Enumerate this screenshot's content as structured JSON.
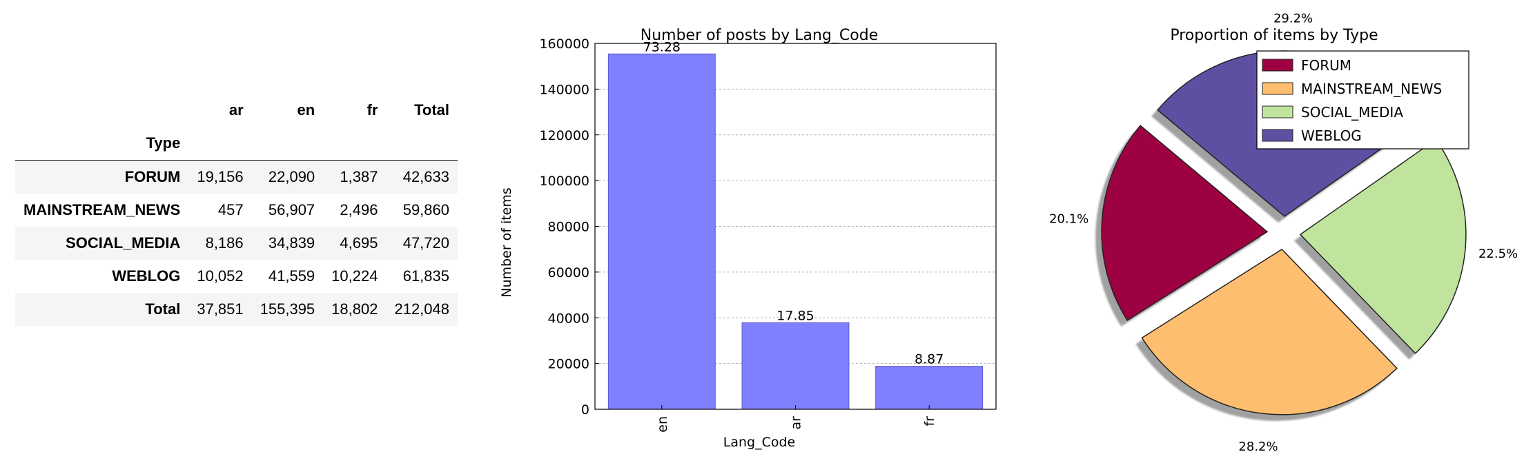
{
  "table": {
    "index_name": "Type",
    "columns": [
      "ar",
      "en",
      "fr",
      "Total"
    ],
    "rows": [
      {
        "label": "FORUM",
        "values": [
          "19,156",
          "22,090",
          "1,387",
          "42,633"
        ]
      },
      {
        "label": "MAINSTREAM_NEWS",
        "values": [
          "457",
          "56,907",
          "2,496",
          "59,860"
        ]
      },
      {
        "label": "SOCIAL_MEDIA",
        "values": [
          "8,186",
          "34,839",
          "4,695",
          "47,720"
        ]
      },
      {
        "label": "WEBLOG",
        "values": [
          "10,052",
          "41,559",
          "10,224",
          "61,835"
        ]
      },
      {
        "label": "Total",
        "values": [
          "37,851",
          "155,395",
          "18,802",
          "212,048"
        ]
      }
    ]
  },
  "chart_data": [
    {
      "type": "bar",
      "title": "Number of posts by Lang_Code",
      "xlabel": "Lang_Code",
      "ylabel": "Number of items",
      "categories": [
        "en",
        "ar",
        "fr"
      ],
      "values": [
        155395,
        37851,
        18802
      ],
      "data_labels": [
        "73.28",
        "17.85",
        "8.87"
      ],
      "ylim": [
        0,
        160000
      ],
      "yticks": [
        0,
        20000,
        40000,
        60000,
        80000,
        100000,
        120000,
        140000,
        160000
      ],
      "grid": "horizontal dashed",
      "bar_color": "#8080ff"
    },
    {
      "type": "pie",
      "title": "Proportion of items by Type",
      "labels": [
        "FORUM",
        "MAINSTREAM_NEWS",
        "SOCIAL_MEDIA",
        "WEBLOG"
      ],
      "values": [
        42633,
        59860,
        47720,
        61835
      ],
      "pct_labels": [
        "20.1%",
        "28.2%",
        "22.5%",
        "29.2%"
      ],
      "colors": [
        "#9e0142",
        "#fdbf6f",
        "#c0e49e",
        "#5e4fa2"
      ],
      "exploded": true,
      "shadow": true,
      "legend": "top-right"
    }
  ]
}
